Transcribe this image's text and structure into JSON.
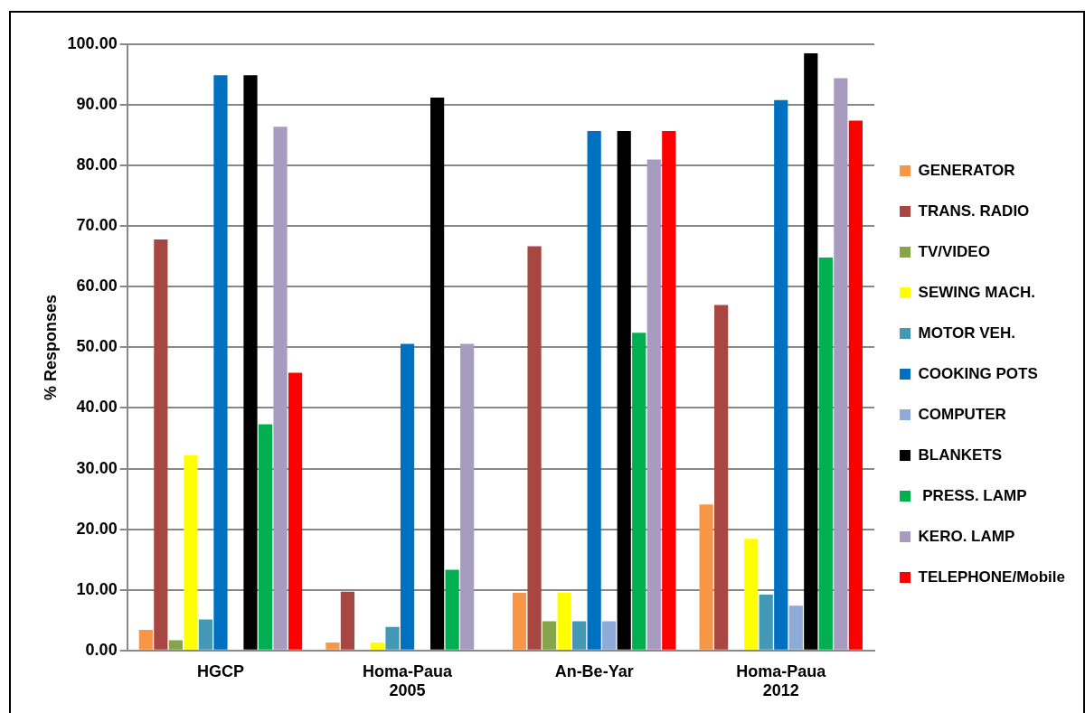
{
  "chart_data": {
    "type": "bar",
    "ylabel": "% Responses",
    "categories": [
      "HGCP",
      "Homa-Paua\n2005",
      "An-Be-Yar",
      "Homa-Paua\n2012"
    ],
    "series": [
      {
        "name": "GENERATOR",
        "color": "#f79646",
        "values": [
          3.4,
          1.3,
          9.5,
          24.1
        ]
      },
      {
        "name": "TRANS. RADIO",
        "color": "#a84642",
        "values": [
          67.8,
          9.7,
          66.7,
          57.0
        ]
      },
      {
        "name": "TV/VIDEO",
        "color": "#86a44a",
        "values": [
          1.7,
          0,
          4.8,
          0
        ]
      },
      {
        "name": "SEWING MACH.",
        "color": "#ffff00",
        "values": [
          32.2,
          1.3,
          9.5,
          18.4
        ]
      },
      {
        "name": "MOTOR VEH.",
        "color": "#4298b5",
        "values": [
          5.1,
          3.9,
          4.8,
          9.2
        ]
      },
      {
        "name": "COOKING POTS",
        "color": "#0070c0",
        "values": [
          94.9,
          50.6,
          85.7,
          90.8
        ]
      },
      {
        "name": "COMPUTER",
        "color": "#8eaad6",
        "values": [
          0,
          0,
          4.8,
          7.4
        ]
      },
      {
        "name": "BLANKETS",
        "color": "#000000",
        "values": [
          94.9,
          91.2,
          85.7,
          98.5
        ]
      },
      {
        "name": " PRESS. LAMP",
        "color": "#00b050",
        "values": [
          37.3,
          13.3,
          52.4,
          64.8
        ]
      },
      {
        "name": "KERO. LAMP",
        "color": "#a89bc0",
        "values": [
          86.4,
          50.6,
          81.0,
          94.4
        ]
      },
      {
        "name": "TELEPHONE/Mobile",
        "color": "#ff0000",
        "values": [
          45.8,
          0,
          85.7,
          87.4
        ]
      }
    ],
    "ylim": [
      0,
      100
    ],
    "yticks": [
      {
        "value": 0,
        "label": "0.00"
      },
      {
        "value": 10,
        "label": "10.00"
      },
      {
        "value": 20,
        "label": "20.00"
      },
      {
        "value": 30,
        "label": "30.00"
      },
      {
        "value": 40,
        "label": "40.00"
      },
      {
        "value": 50,
        "label": "50.00"
      },
      {
        "value": 60,
        "label": "60.00"
      },
      {
        "value": 70,
        "label": "70.00"
      },
      {
        "value": 80,
        "label": "80.00"
      },
      {
        "value": 90,
        "label": "90.00"
      },
      {
        "value": 100,
        "label": "100.00"
      }
    ],
    "grid": "y",
    "legend": "right"
  }
}
